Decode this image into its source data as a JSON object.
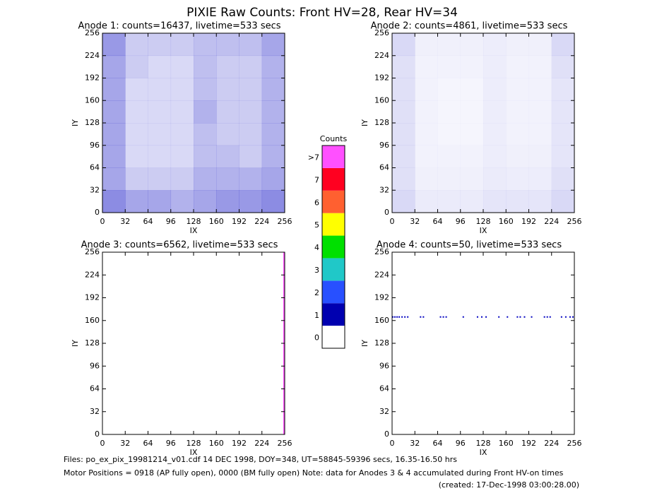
{
  "header": {
    "title": "PIXIE Raw Counts:  Front HV=28, Rear HV=34"
  },
  "footer": {
    "line1": "Files: po_ex_pix_19981214_v01.cdf    14 DEC 1998, DOY=348, UT=58845-59396 secs, 16.35-16.50 hrs",
    "line2": "Motor Positions = 0918 (AP fully open), 0000 (BM fully open)    Note: data for Anodes 3 & 4 accumulated during Front HV-on times",
    "line3": "(created: 17-Dec-1998 03:00:28.00)"
  },
  "chart_data": [
    {
      "type": "heatmap",
      "title": "Anode 1: counts=16437, livetime=533 secs",
      "x_label": "IX",
      "y_label": "IY",
      "color": "#0000c0",
      "xlim": [
        0,
        256
      ],
      "ylim": [
        0,
        256
      ],
      "xticks": [
        0,
        32,
        64,
        96,
        128,
        160,
        192,
        224,
        256
      ],
      "yticks": [
        0,
        32,
        64,
        96,
        128,
        160,
        192,
        224,
        256
      ],
      "z": [
        [
          0.45,
          0.35,
          0.35,
          0.3,
          0.35,
          0.4,
          0.4,
          0.45
        ],
        [
          0.35,
          0.2,
          0.2,
          0.2,
          0.3,
          0.3,
          0.3,
          0.35
        ],
        [
          0.35,
          0.15,
          0.15,
          0.15,
          0.25,
          0.25,
          0.2,
          0.3
        ],
        [
          0.35,
          0.15,
          0.15,
          0.15,
          0.25,
          0.2,
          0.2,
          0.3
        ],
        [
          0.35,
          0.15,
          0.15,
          0.15,
          0.3,
          0.2,
          0.2,
          0.3
        ],
        [
          0.35,
          0.15,
          0.15,
          0.15,
          0.25,
          0.2,
          0.2,
          0.3
        ],
        [
          0.35,
          0.2,
          0.15,
          0.15,
          0.25,
          0.2,
          0.2,
          0.3
        ],
        [
          0.4,
          0.2,
          0.2,
          0.2,
          0.25,
          0.25,
          0.25,
          0.35
        ]
      ]
    },
    {
      "type": "heatmap",
      "title": "Anode 2: counts=4861, livetime=533 secs",
      "x_label": "IX",
      "y_label": "IY",
      "color": "#0000c0",
      "xlim": [
        0,
        256
      ],
      "ylim": [
        0,
        256
      ],
      "xticks": [
        0,
        32,
        64,
        96,
        128,
        160,
        192,
        224,
        256
      ],
      "yticks": [
        0,
        32,
        64,
        96,
        128,
        160,
        192,
        224,
        256
      ],
      "z": [
        [
          0.15,
          0.08,
          0.08,
          0.08,
          0.1,
          0.1,
          0.1,
          0.15
        ],
        [
          0.12,
          0.06,
          0.06,
          0.06,
          0.08,
          0.07,
          0.07,
          0.12
        ],
        [
          0.12,
          0.05,
          0.05,
          0.05,
          0.07,
          0.06,
          0.06,
          0.1
        ],
        [
          0.12,
          0.05,
          0.04,
          0.04,
          0.07,
          0.05,
          0.05,
          0.1
        ],
        [
          0.12,
          0.05,
          0.04,
          0.04,
          0.07,
          0.05,
          0.05,
          0.1
        ],
        [
          0.12,
          0.05,
          0.04,
          0.04,
          0.07,
          0.05,
          0.05,
          0.1
        ],
        [
          0.12,
          0.05,
          0.05,
          0.05,
          0.07,
          0.05,
          0.05,
          0.12
        ],
        [
          0.15,
          0.06,
          0.06,
          0.06,
          0.07,
          0.06,
          0.06,
          0.15
        ]
      ]
    },
    {
      "type": "line",
      "title": "Anode 3: counts=6562, livetime=533 secs",
      "x_label": "IX",
      "y_label": "IY",
      "color": "#ff50ff",
      "xlim": [
        0,
        256
      ],
      "ylim": [
        0,
        256
      ],
      "xticks": [
        0,
        32,
        64,
        96,
        128,
        160,
        192,
        224,
        256
      ],
      "yticks": [
        0,
        32,
        64,
        96,
        128,
        160,
        192,
        224,
        256
      ],
      "x": [
        255,
        255
      ],
      "y": [
        0,
        256
      ]
    },
    {
      "type": "scatter",
      "title": "Anode 4: counts=50, livetime=533 secs",
      "x_label": "IX",
      "y_label": "IY",
      "color": "#0000c0",
      "xlim": [
        0,
        256
      ],
      "ylim": [
        0,
        256
      ],
      "xticks": [
        0,
        32,
        64,
        96,
        128,
        160,
        192,
        224,
        256
      ],
      "yticks": [
        0,
        32,
        64,
        96,
        128,
        160,
        192,
        224,
        256
      ],
      "x": [
        1,
        4,
        7,
        10,
        14,
        18,
        22,
        40,
        44,
        68,
        72,
        76,
        100,
        120,
        126,
        132,
        150,
        162,
        176,
        180,
        186,
        196,
        214,
        218,
        222,
        238,
        244,
        250,
        254
      ],
      "y": [
        165,
        165,
        165,
        165,
        165,
        165,
        165,
        165,
        165,
        165,
        165,
        165,
        165,
        165,
        165,
        165,
        165,
        165,
        165,
        165,
        165,
        165,
        165,
        165,
        165,
        165,
        165,
        165,
        165
      ]
    },
    {
      "type": "colorbar",
      "title": "Counts",
      "categories": [
        "0",
        "1",
        "2",
        "3",
        "4",
        "5",
        "6",
        "7",
        ">7"
      ],
      "colors": [
        "#ffffff",
        "#0000b0",
        "#2850ff",
        "#20c8c8",
        "#00e000",
        "#ffff00",
        "#ff6030",
        "#ff0020",
        "#ff50ff"
      ]
    }
  ]
}
